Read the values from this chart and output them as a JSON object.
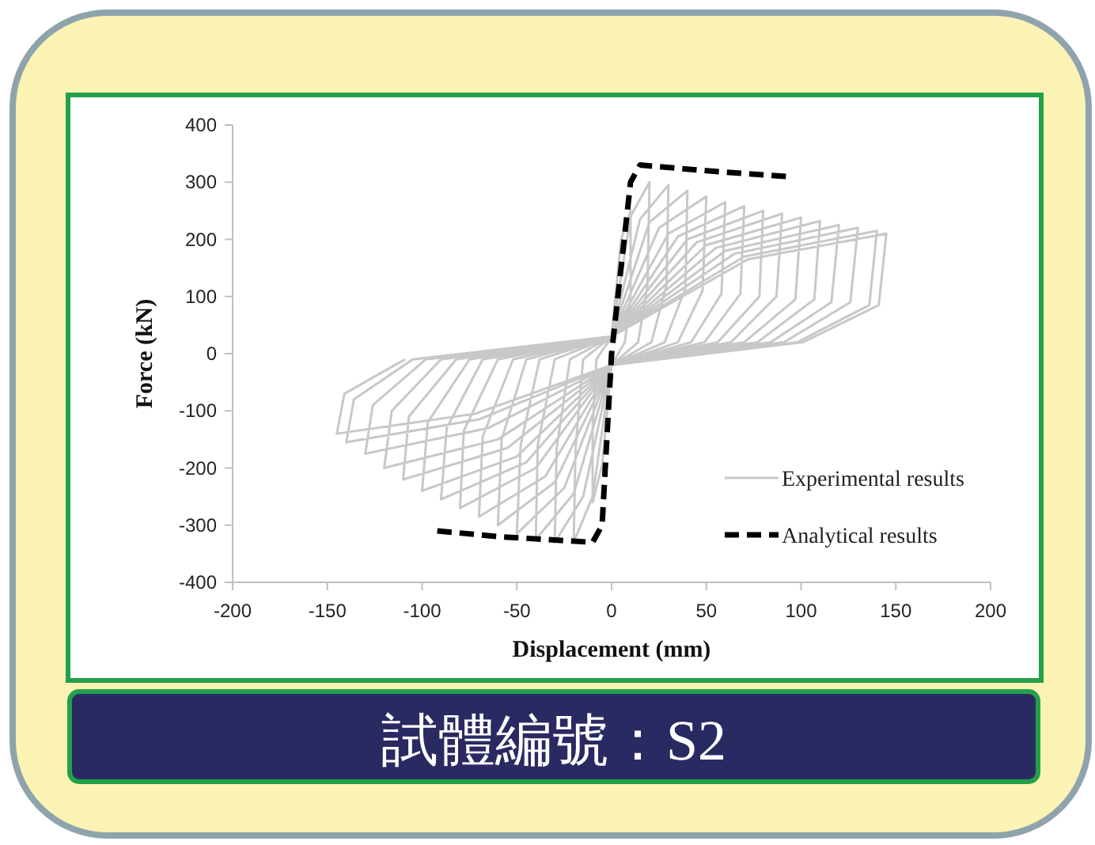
{
  "chart_data": {
    "type": "line",
    "xlabel": "Displacement (mm)",
    "ylabel": "Force (kN)",
    "xlim": [
      -200,
      200
    ],
    "ylim": [
      -400,
      400
    ],
    "xticks": [
      -200,
      -150,
      -100,
      -50,
      0,
      50,
      100,
      150,
      200
    ],
    "yticks": [
      -400,
      -300,
      -200,
      -100,
      0,
      100,
      200,
      300,
      400
    ],
    "grid": false,
    "legend": "bottom right",
    "marker": "none",
    "annotations": [
      "試體編號：S2"
    ],
    "series": [
      {
        "name": "Experimental results",
        "color": "#c8c8c8",
        "line_style": "solid",
        "x": [
          0,
          5,
          10,
          10,
          7,
          0,
          -5,
          -10,
          -10,
          -8,
          0,
          10,
          20,
          19,
          14,
          0,
          -10,
          -20,
          -19,
          -15,
          0,
          15,
          30,
          29,
          21,
          0,
          -15,
          -30,
          -29,
          -22,
          0,
          20,
          40,
          39,
          28,
          0,
          -20,
          -40,
          -39,
          -30,
          0,
          25,
          50,
          48,
          35,
          0,
          -25,
          -50,
          -48,
          -38,
          0,
          30,
          60,
          58,
          42,
          0,
          -30,
          -60,
          -58,
          -45,
          0,
          35,
          70,
          68,
          49,
          0,
          -35,
          -70,
          -68,
          -52,
          0,
          40,
          80,
          78,
          56,
          0,
          -40,
          -80,
          -78,
          -60,
          0,
          45,
          90,
          87,
          63,
          0,
          -45,
          -90,
          -87,
          -68,
          0,
          50,
          100,
          97,
          70,
          0,
          -50,
          -100,
          -97,
          -75,
          0,
          55,
          110,
          107,
          77,
          0,
          -55,
          -110,
          -107,
          -82,
          0,
          60,
          120,
          116,
          84,
          0,
          -60,
          -120,
          -116,
          -90,
          0,
          65,
          130,
          126,
          91,
          0,
          -65,
          -130,
          -126,
          -98,
          0,
          70,
          140,
          136,
          98,
          0,
          -70,
          -140,
          -136,
          -105,
          0,
          72,
          145,
          141,
          101,
          0,
          -72,
          -145,
          -141,
          -109
        ],
        "values": [
          30,
          200,
          250,
          100,
          20,
          -20,
          -195,
          -260,
          -130,
          -10,
          30,
          240,
          300,
          120,
          20,
          -20,
          -250,
          -330,
          -165,
          -10,
          30,
          235,
          295,
          120,
          20,
          -20,
          -250,
          -330,
          -165,
          -10,
          30,
          230,
          285,
          115,
          20,
          -20,
          -245,
          -325,
          -160,
          -10,
          30,
          220,
          275,
          110,
          20,
          -20,
          -235,
          -315,
          -160,
          -10,
          30,
          210,
          265,
          105,
          20,
          -20,
          -225,
          -300,
          -150,
          -10,
          30,
          205,
          258,
          105,
          20,
          -20,
          -215,
          -285,
          -145,
          -10,
          30,
          200,
          250,
          100,
          20,
          -20,
          -200,
          -270,
          -135,
          -10,
          30,
          195,
          245,
          100,
          20,
          -20,
          -190,
          -255,
          -130,
          -10,
          30,
          190,
          238,
          95,
          20,
          -20,
          -180,
          -240,
          -120,
          -10,
          30,
          185,
          232,
          95,
          20,
          -20,
          -165,
          -220,
          -110,
          -10,
          30,
          180,
          225,
          90,
          20,
          -20,
          -150,
          -200,
          -100,
          -10,
          30,
          175,
          220,
          90,
          20,
          -20,
          -130,
          -175,
          -90,
          -10,
          30,
          170,
          215,
          85,
          20,
          -20,
          -115,
          -155,
          -80,
          -10,
          30,
          165,
          210,
          85,
          20,
          -20,
          -105,
          -140,
          -70,
          -10
        ]
      },
      {
        "name": "Analytical results",
        "color": "#000000",
        "line_style": "dashed",
        "x": [
          -92,
          -60,
          -10,
          -5,
          0,
          10,
          15,
          50,
          92
        ],
        "values": [
          -310,
          -320,
          -330,
          -300,
          0,
          300,
          330,
          320,
          310
        ]
      }
    ]
  }
}
